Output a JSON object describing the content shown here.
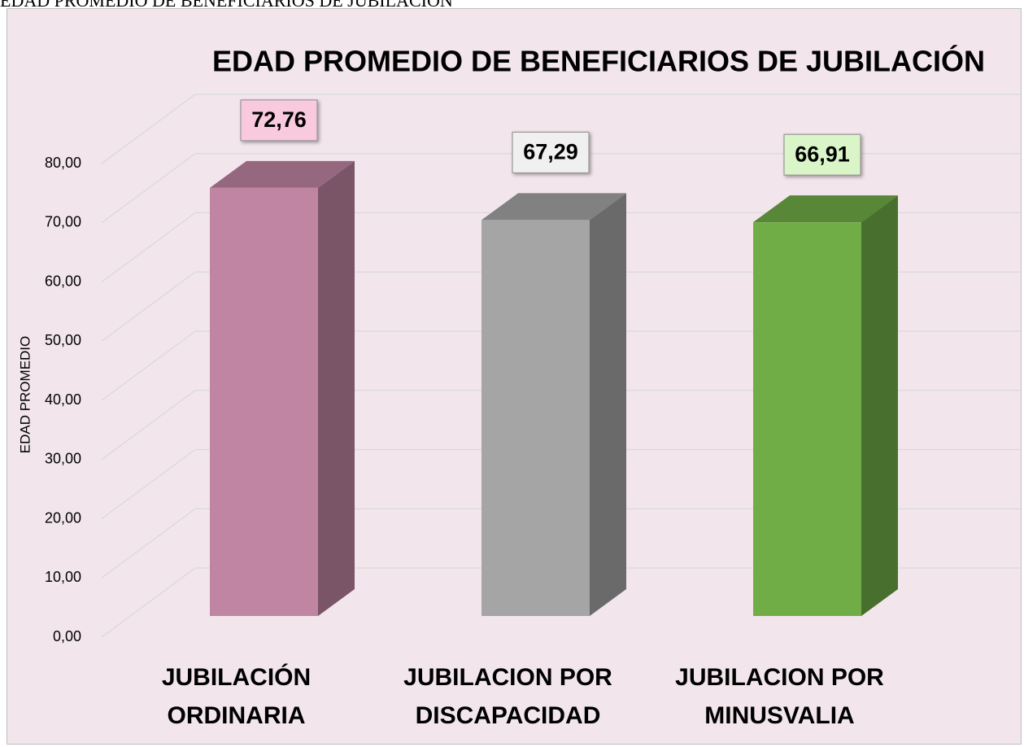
{
  "caption": "EDAD PROMEDIO DE BENEFICIARIOS DE JUBILACIÓN",
  "chart_data": {
    "type": "bar3d",
    "title": "EDAD PROMEDIO DE BENEFICIARIOS DE JUBILACIÓN",
    "y_label": "EDAD PROMEDIO",
    "categories": [
      "JUBILACIÓN ORDINARIA",
      "JUBILACION POR DISCAPACIDAD",
      "JUBILACION POR MINUSVALIA"
    ],
    "values": [
      72.76,
      67.29,
      66.91
    ],
    "value_labels": [
      "72,76",
      "67,29",
      "66,91"
    ],
    "colors": [
      "#bf85a3",
      "#a5a5a5",
      "#70ad47"
    ],
    "label_box_colors": [
      "#f9c9dd",
      "#f0f0f0",
      "#daf6c9"
    ],
    "ylim": [
      0,
      80
    ],
    "yticks": [
      {
        "value": 0,
        "label": "0,00"
      },
      {
        "value": 10,
        "label": "10,00"
      },
      {
        "value": 20,
        "label": "20,00"
      },
      {
        "value": 30,
        "label": "30,00"
      },
      {
        "value": 40,
        "label": "40,00"
      },
      {
        "value": 50,
        "label": "50,00"
      },
      {
        "value": 60,
        "label": "60,00"
      },
      {
        "value": 70,
        "label": "70,00"
      },
      {
        "value": 80,
        "label": "80,00"
      }
    ],
    "grid": true
  }
}
